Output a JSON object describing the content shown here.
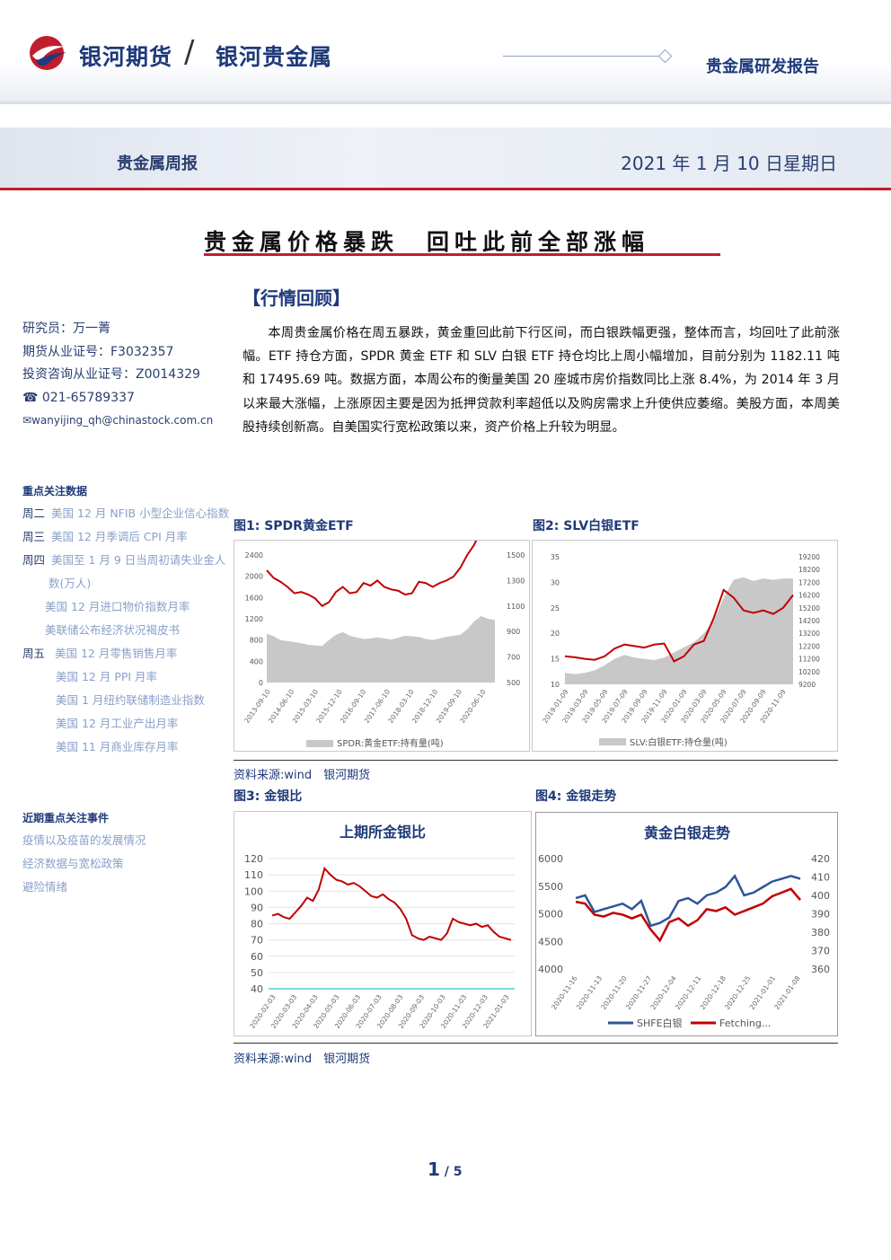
{
  "header": {
    "brand": "银河期货",
    "slash": "/",
    "brand2": "银河贵金属",
    "report_type": "贵金属研发报告"
  },
  "subheader": {
    "left": "贵金属周报",
    "right": "2021 年 1 月 10 日星期日"
  },
  "title": "贵金属价格暴跌　回吐此前全部涨幅",
  "section": "【行情回顾】",
  "author": {
    "researcher": "研究员：万一菁",
    "futures_cert": "期货从业证号：F3032357",
    "invest_cert": "投资咨询从业证号：Z0014329",
    "phone": "021-65789337",
    "email": "wanyijing_qh@chinastock.com.cn"
  },
  "focus_data": {
    "heading": "重点关注数据",
    "rows": [
      {
        "day": "周二",
        "item": "美国 12 月 NFIB 小型企业信心指数"
      },
      {
        "day": "周三",
        "item": "美国 12 月季调后 CPI 月率"
      },
      {
        "day": "周四",
        "item": "美国至 1 月 9 日当周初请失业金人"
      },
      {
        "day": "",
        "item": "数(万人)"
      },
      {
        "day": "",
        "item": "美国 12 月进口物价指数月率"
      },
      {
        "day": "",
        "item": "美联储公布经济状况褐皮书"
      },
      {
        "day": "周五",
        "item": "美国 12 月零售销售月率"
      },
      {
        "day": "",
        "item": "美国 12 月 PPI 月率"
      },
      {
        "day": "",
        "item": "美国 1 月纽约联储制造业指数"
      },
      {
        "day": "",
        "item": "美国 12 月工业产出月率"
      },
      {
        "day": "",
        "item": "美国 11 月商业库存月率"
      }
    ]
  },
  "events": {
    "heading": "近期重点关注事件",
    "items": [
      "疫情以及疫苗的发展情况",
      "经济数据与宽松政策",
      "避险情绪"
    ]
  },
  "body": "本周贵金属价格在周五暴跌，黄金重回此前下行区间，而白银跌幅更强，整体而言，均回吐了此前涨幅。ETF 持仓方面，SPDR 黄金 ETF 和 SLV 白银 ETF 持仓均比上周小幅增加，目前分别为 1182.11 吨和 17495.69 吨。数据方面，本周公布的衡量美国 20 座城市房价指数同比上涨 8.4%，为 2014 年 3 月以来最大涨幅，上涨原因主要是因为抵押贷款利率超低以及购房需求上升使供应萎缩。美股方面，本周美股持续创新高。自美国实行宽松政策以来，资产价格上升较为明显。",
  "figures": {
    "fig1_caption": "图1: SPDR黄金ETF",
    "fig2_caption": "图2:  SLV白银ETF",
    "fig3_caption": "图3:  金银比",
    "fig4_caption": "图4:  金银走势",
    "source1": "资料来源:wind　银河期货",
    "source2": "资料来源:wind　银河期货"
  },
  "page": {
    "current": "1",
    "sep": " / ",
    "total": "5"
  },
  "colors": {
    "brand_blue": "#1f3a7a",
    "accent_red": "#c21d2c",
    "area_gray": "#c8c8c8",
    "line_red": "#c00000",
    "line_blue": "#2f5597"
  },
  "chart_data": [
    {
      "type": "area",
      "title": "",
      "x_ticks": [
        "2013-09-10",
        "2014-06-10",
        "2015-03-10",
        "2015-12-10",
        "2016-09-10",
        "2017-06-10",
        "2018-03-10",
        "2018-12-10",
        "2019-09-10",
        "2020-06-10"
      ],
      "y_left_ticks": [
        "2400",
        "2000",
        "1600",
        "1200",
        "800",
        "400",
        "0"
      ],
      "y_right_ticks": [
        "1500",
        "1300",
        "1100",
        "900",
        "700",
        "500"
      ],
      "legend": [
        "SPDR:黄金ETF:持有量(吨)"
      ],
      "series": [
        {
          "name": "SPDR:黄金ETF:持有量(吨)",
          "axis": "left",
          "values": [
            920,
            870,
            800,
            780,
            760,
            740,
            710,
            700,
            690,
            800,
            900,
            950,
            880,
            850,
            820,
            830,
            850,
            830,
            810,
            840,
            880,
            870,
            860,
            820,
            800,
            830,
            860,
            880,
            900,
            1000,
            1150,
            1250,
            1200,
            1180
          ]
        },
        {
          "axis": "right",
          "values": [
            1380,
            1320,
            1290,
            1250,
            1200,
            1210,
            1190,
            1160,
            1100,
            1130,
            1210,
            1250,
            1200,
            1210,
            1280,
            1260,
            1300,
            1250,
            1230,
            1220,
            1190,
            1200,
            1290,
            1280,
            1250,
            1280,
            1300,
            1330,
            1400,
            1500,
            1580,
            1700,
            1880,
            1850
          ]
        }
      ]
    },
    {
      "type": "area",
      "title": "",
      "x_ticks": [
        "2019-01-09",
        "2019-03-09",
        "2019-05-09",
        "2019-07-09",
        "2019-09-09",
        "2019-11-09",
        "2020-01-09",
        "2020-03-09",
        "2020-05-09",
        "2020-07-09",
        "2020-09-09",
        "2020-11-09"
      ],
      "y_left_ticks": [
        "35",
        "30",
        "25",
        "20",
        "15",
        "10"
      ],
      "y_right_ticks": [
        "19200",
        "18200",
        "17200",
        "16200",
        "15200",
        "14200",
        "13200",
        "12200",
        "11200",
        "10200",
        "9200"
      ],
      "legend": [
        "SLV:白银ETF:持仓量(吨)"
      ],
      "series": [
        {
          "name": "SLV:白银ETF:持仓量(吨)",
          "axis": "right",
          "values": [
            10100,
            10000,
            10100,
            10300,
            10700,
            11200,
            11500,
            11300,
            11200,
            11100,
            11300,
            11700,
            12100,
            12500,
            13200,
            14200,
            16000,
            17400,
            17600,
            17300,
            17500,
            17400,
            17500,
            17500
          ]
        },
        {
          "axis": "left",
          "values": [
            15.5,
            15.3,
            15.0,
            14.8,
            15.5,
            17.0,
            17.8,
            17.5,
            17.2,
            17.8,
            18.0,
            14.5,
            15.5,
            17.8,
            18.5,
            23.0,
            28.5,
            27.0,
            24.5,
            24.0,
            24.5,
            23.8,
            25.0,
            27.5
          ]
        }
      ]
    },
    {
      "type": "line",
      "title": "上期所金银比",
      "x_ticks": [
        "2020-02-03",
        "2020-03-03",
        "2020-04-03",
        "2020-05-03",
        "2020-06-03",
        "2020-07-03",
        "2020-08-03",
        "2020-09-03",
        "2020-10-03",
        "2020-11-03",
        "2020-12-03",
        "2021-01-03"
      ],
      "ylim": [
        40,
        120
      ],
      "y_ticks": [
        "120",
        "110",
        "100",
        "90",
        "80",
        "70",
        "60",
        "50",
        "40"
      ],
      "series": [
        {
          "values": [
            85,
            86,
            84,
            83,
            87,
            91,
            96,
            94,
            101,
            114,
            110,
            107,
            106,
            104,
            105,
            103,
            100,
            97,
            96,
            98,
            95,
            93,
            89,
            83,
            73,
            71,
            70,
            72,
            71,
            70,
            74,
            83,
            81,
            80,
            79,
            80,
            78,
            79,
            75,
            72,
            71,
            70
          ]
        }
      ]
    },
    {
      "type": "line",
      "title": "黄金白银走势",
      "x_ticks": [
        "2020-11-16",
        "2020-11-13",
        "2020-11-20",
        "2020-11-27",
        "2020-12-04",
        "2020-12-11",
        "2020-12-18",
        "2020-12-25",
        "2021-01-01",
        "2021-01-08"
      ],
      "y_left_ticks": [
        "6000",
        "5500",
        "5000",
        "4500",
        "4000"
      ],
      "y_right_ticks": [
        "420",
        "410",
        "400",
        "390",
        "380",
        "370",
        "360"
      ],
      "legend": [
        "SHFE白银",
        "Fetching..."
      ],
      "series": [
        {
          "name": "SHFE白银",
          "axis": "left",
          "values": [
            5300,
            5350,
            5050,
            5100,
            5150,
            5200,
            5100,
            5250,
            4800,
            4850,
            4950,
            5250,
            5300,
            5200,
            5350,
            5400,
            5500,
            5700,
            5350,
            5400,
            5500,
            5600,
            5650,
            5700,
            5650
          ]
        },
        {
          "name": "Fetching...",
          "axis": "right",
          "values": [
            397,
            396,
            390,
            389,
            391,
            390,
            388,
            390,
            382,
            376,
            386,
            388,
            384,
            387,
            393,
            392,
            394,
            390,
            392,
            394,
            396,
            400,
            402,
            404,
            398
          ]
        }
      ]
    }
  ]
}
